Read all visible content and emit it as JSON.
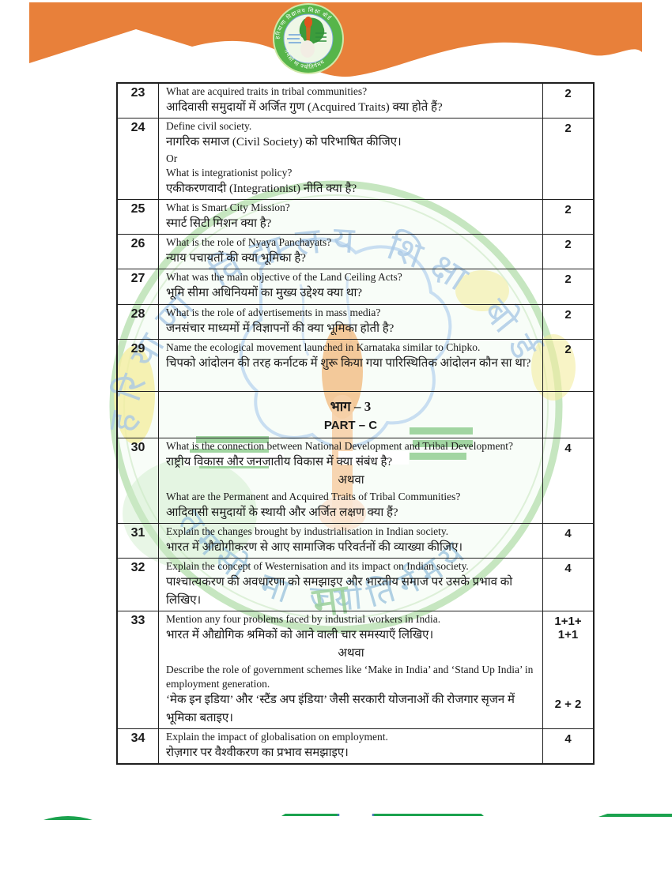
{
  "header": {
    "logo": {
      "top_text": "हरियाणा विद्यालय शिक्षा बोर्ड",
      "bottom_text": "तमसो मा ज्योतिर्गमय"
    }
  },
  "watermark": {
    "top_text": "हरियाणा विद्यालय शिक्षा बोर्ड",
    "bottom_text": "तमसो मा ज्योतिर्गमय",
    "center_glyph": "मा"
  },
  "colors": {
    "header_orange": "#E8803A",
    "footer_green": "#1BA24E",
    "notch_blue": "#4a7ab5",
    "logo_green": "#4aa63f"
  },
  "table": {
    "rows": [
      {
        "type": "q",
        "no": "23",
        "marks": [
          "2"
        ],
        "lines": [
          [
            "en",
            "What are acquired traits in tribal communities?"
          ],
          [
            "hi",
            "आदिवासी समुदायों में अर्जित गुण (Acquired Traits) क्या होते हैं?"
          ]
        ]
      },
      {
        "type": "q",
        "no": "24",
        "marks": [
          "2"
        ],
        "lines": [
          [
            "en",
            "Define civil society."
          ],
          [
            "hi",
            "नागरिक समाज (Civil Society) को परिभाषित कीजिए।"
          ],
          [
            "en",
            "Or"
          ],
          [
            "en",
            "What is integrationist policy?"
          ],
          [
            "hi",
            "एकीकरणवादी (Integrationist) नीति क्या है?"
          ]
        ]
      },
      {
        "type": "q",
        "no": "25",
        "marks": [
          "2"
        ],
        "lines": [
          [
            "en",
            "What is Smart City Mission?"
          ],
          [
            "hi",
            "स्मार्ट सिटी मिशन क्या है?"
          ]
        ]
      },
      {
        "type": "q",
        "no": "26",
        "marks": [
          "2"
        ],
        "lines": [
          [
            "en",
            "What is the role of Nyaya Panchayats?"
          ],
          [
            "hi",
            "न्याय पचायतों की क्या भूमिका है?"
          ]
        ]
      },
      {
        "type": "q",
        "no": "27",
        "marks": [
          "2"
        ],
        "lines": [
          [
            "en",
            "What was the main objective of the Land Ceiling Acts?"
          ],
          [
            "hi",
            "भूमि सीमा अधिनियमों का मुख्य उद्देश्य क्या था?"
          ]
        ]
      },
      {
        "type": "q",
        "no": "28",
        "marks": [
          "2"
        ],
        "lines": [
          [
            "en",
            "What is the role of advertisements in mass media?"
          ],
          [
            "hi",
            "जनसंचार माध्यमों में विज्ञापनों की क्या भूमिका होती है?"
          ]
        ]
      },
      {
        "type": "q",
        "no": "29",
        "marks": [
          "2"
        ],
        "lines": [
          [
            "en",
            "Name the ecological movement launched in Karnataka similar to Chipko."
          ],
          [
            "hi",
            "चिपको आंदोलन की तरह कर्नाटक में शुरू किया गया पारिस्थितिक आंदोलन कौन सा था?"
          ]
        ]
      },
      {
        "type": "section",
        "hindi": "भाग – 3",
        "english": "PART – C"
      },
      {
        "type": "q",
        "no": "30",
        "marks": [
          "4"
        ],
        "lines": [
          [
            "en",
            "What is the connection between National Development and Tribal Development?"
          ],
          [
            "hi",
            "राष्ट्रीय विकास और जनजातीय विकास में क्या संबंध है?"
          ],
          [
            "hc",
            "अथवा"
          ],
          [
            "en",
            "What are the Permanent and Acquired Traits of Tribal Communities?"
          ],
          [
            "hi",
            "आदिवासी समुदायों के स्थायी और अर्जित लक्षण क्या हैं?"
          ]
        ]
      },
      {
        "type": "q",
        "no": "31",
        "marks": [
          "4"
        ],
        "lines": [
          [
            "en",
            "Explain the changes brought by industrialisation in Indian society."
          ],
          [
            "hi",
            "भारत में औद्योगीकरण से आए सामाजिक परिवर्तनों की व्याख्या कीजिए।"
          ]
        ]
      },
      {
        "type": "q",
        "no": "32",
        "marks": [
          "4"
        ],
        "lines": [
          [
            "en",
            "Explain the concept of Westernisation and its impact on Indian society."
          ],
          [
            "hi",
            "पाश्चात्यकरण की अवधारणा को समझाइए और भारतीय समाज पर उसके प्रभाव को लिखिए।"
          ]
        ]
      },
      {
        "type": "q",
        "no": "33",
        "marks": [
          "1+1+",
          "1+1"
        ],
        "marks_bottom": "2 + 2",
        "lines": [
          [
            "en",
            "Mention any four problems faced by industrial workers in India."
          ],
          [
            "hi",
            "भारत में औद्योगिक श्रमिकों को आने वाली चार समस्याएँ लिखिए।"
          ],
          [
            "hc",
            "अथवा"
          ],
          [
            "en",
            "Describe the role of government schemes like ‘Make in India’ and ‘Stand Up India’ in employment generation."
          ],
          [
            "hi",
            "‘मेक इन इडिया’ और ‘स्टैंड अप इंडिया’ जैसी सरकारी योजनाओं की रोजगार सृजन में भूमिका बताइए।"
          ]
        ]
      },
      {
        "type": "q",
        "no": "34",
        "marks": [
          "4"
        ],
        "lines": [
          [
            "en",
            "Explain the impact of globalisation on employment."
          ],
          [
            "hi",
            "रोज़गार पर वैश्वीकरण का प्रभाव समझाइए।"
          ]
        ]
      }
    ]
  }
}
